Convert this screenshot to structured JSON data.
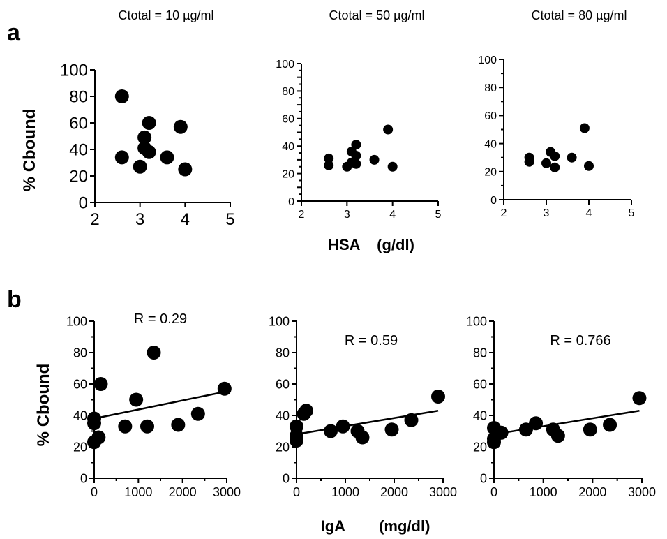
{
  "figure": {
    "panel_a_letter": "a",
    "panel_b_letter": "b",
    "top_titles": [
      "Ctotal = 10 µg/ml",
      "Ctotal = 50 µg/ml",
      "Ctotal = 80 µg/ml"
    ],
    "ylabel_a": "% Cbound",
    "ylabel_b": "% Cbound",
    "xlabel_a": "HSA    (g/dl)",
    "xlabel_b": "IgA        (mg/dl)"
  },
  "chart_data": [
    {
      "type": "scatter",
      "title": "Ctotal = 10 µg/ml",
      "xlabel": "",
      "ylabel": "% Cbound",
      "xlim": [
        2,
        5
      ],
      "ylim": [
        0,
        100
      ],
      "xticks": [
        2,
        3,
        4,
        5
      ],
      "yticks": [
        0,
        20,
        40,
        60,
        80,
        100
      ],
      "series": [
        {
          "x": [
            2.6,
            2.6,
            3.0,
            3.1,
            3.1,
            3.2,
            3.2,
            3.6,
            3.9,
            4.0
          ],
          "y": [
            80,
            34,
            27,
            49,
            41,
            60,
            38,
            34,
            57,
            25
          ]
        }
      ]
    },
    {
      "type": "scatter",
      "title": "Ctotal = 50 µg/ml",
      "xlabel": "HSA (g/dl)",
      "ylabel": "",
      "xlim": [
        2,
        5
      ],
      "ylim": [
        0,
        100
      ],
      "xticks": [
        2,
        3,
        4,
        5
      ],
      "yticks": [
        0,
        10,
        20,
        30,
        40,
        50,
        60,
        70,
        80,
        90,
        100
      ],
      "series": [
        {
          "x": [
            2.6,
            2.6,
            3.0,
            3.1,
            3.1,
            3.2,
            3.2,
            3.2,
            3.6,
            3.9,
            4.0
          ],
          "y": [
            31,
            26,
            25,
            36,
            28,
            41,
            33,
            27,
            30,
            52,
            25
          ]
        }
      ]
    },
    {
      "type": "scatter",
      "title": "Ctotal = 80 µg/ml",
      "xlabel": "",
      "ylabel": "",
      "xlim": [
        2,
        5
      ],
      "ylim": [
        0,
        100
      ],
      "xticks": [
        2,
        3,
        4,
        5
      ],
      "yticks": [
        0,
        20,
        40,
        60,
        80,
        100
      ],
      "series": [
        {
          "x": [
            2.6,
            2.6,
            3.0,
            3.1,
            3.2,
            3.2,
            3.6,
            3.9,
            4.0
          ],
          "y": [
            30,
            27,
            26,
            34,
            31,
            23,
            30,
            51,
            24
          ]
        }
      ]
    },
    {
      "type": "scatter",
      "title": "",
      "xlabel": "",
      "ylabel": "% Cbound",
      "annotation": "R = 0.29",
      "xlim": [
        0,
        3000
      ],
      "ylim": [
        0,
        100
      ],
      "xticks": [
        0,
        1000,
        2000,
        3000
      ],
      "yticks": [
        0,
        20,
        40,
        60,
        80,
        100
      ],
      "series": [
        {
          "x": [
            0,
            0,
            0,
            100,
            150,
            700,
            950,
            1200,
            1350,
            1900,
            2350,
            2950
          ],
          "y": [
            38,
            35,
            23,
            26,
            60,
            33,
            50,
            33,
            80,
            34,
            41,
            57
          ]
        }
      ],
      "fit_line": {
        "x": [
          0,
          2950
        ],
        "y": [
          38,
          55
        ]
      }
    },
    {
      "type": "scatter",
      "title": "",
      "xlabel": "IgA (mg/dl)",
      "ylabel": "",
      "annotation": "R = 0.59",
      "xlim": [
        0,
        3000
      ],
      "ylim": [
        0,
        100
      ],
      "xticks": [
        0,
        1000,
        2000,
        3000
      ],
      "yticks": [
        0,
        20,
        40,
        60,
        80,
        100
      ],
      "series": [
        {
          "x": [
            0,
            0,
            0,
            150,
            200,
            700,
            950,
            1250,
            1350,
            1950,
            2350,
            2900
          ],
          "y": [
            33,
            27,
            24,
            41,
            43,
            30,
            33,
            30,
            26,
            31,
            37,
            52
          ]
        }
      ],
      "fit_line": {
        "x": [
          0,
          2900
        ],
        "y": [
          28,
          43
        ]
      }
    },
    {
      "type": "scatter",
      "title": "",
      "xlabel": "",
      "ylabel": "",
      "annotation": "R = 0.766",
      "xlim": [
        0,
        3000
      ],
      "ylim": [
        0,
        100
      ],
      "xticks": [
        0,
        1000,
        2000,
        3000
      ],
      "yticks": [
        0,
        20,
        40,
        60,
        80,
        100
      ],
      "series": [
        {
          "x": [
            0,
            0,
            0,
            150,
            650,
            850,
            1200,
            1300,
            1950,
            2350,
            2950
          ],
          "y": [
            32,
            25,
            23,
            29,
            31,
            35,
            31,
            27,
            31,
            34,
            51
          ]
        }
      ],
      "fit_line": {
        "x": [
          0,
          2950
        ],
        "y": [
          28,
          43
        ]
      }
    }
  ]
}
